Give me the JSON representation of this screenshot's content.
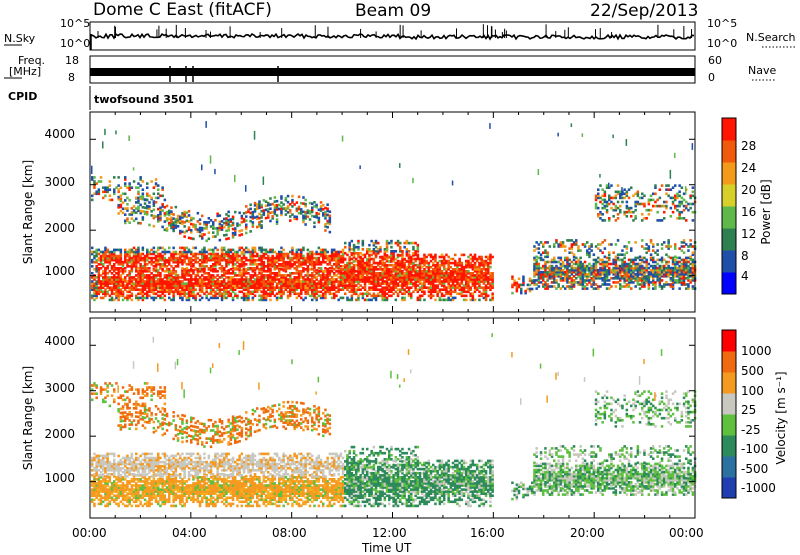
{
  "header": {
    "station": "Dome C East (fitACF)",
    "beam": "Beam 09",
    "date": "22/Sep/2013"
  },
  "panels": {
    "nsky": {
      "label": "N.Sky",
      "ticks": [
        "10^5",
        "10^0"
      ]
    },
    "nsearch": {
      "label": "N.Search",
      "ticks": [
        "10^5",
        "10^0"
      ]
    },
    "freq": {
      "label_line1": "Freq.",
      "label_line2": "[MHz]",
      "ticks": [
        "18",
        "8"
      ]
    },
    "nave": {
      "label": "Nave",
      "ticks": [
        "60",
        "0"
      ]
    },
    "cpid": {
      "label": "CPID",
      "value": "twofsound 3501"
    }
  },
  "chart_data": [
    {
      "type": "heatmap",
      "name": "power",
      "ylabel": "Slant Range [km]",
      "y_ticks": [
        "4000",
        "3000",
        "2000",
        "1000"
      ],
      "y_tick_values": [
        4000,
        3000,
        2000,
        1000
      ],
      "ylim": [
        200,
        4600
      ],
      "colorbar_label": "Power [dB]",
      "colorbar_ticks": [
        "28",
        "24",
        "20",
        "16",
        "12",
        "8",
        "4"
      ],
      "colorbar_colors": [
        "#0000ff",
        "#1f4fa8",
        "#2f8050",
        "#5fb84a",
        "#d8d02a",
        "#f39a1a",
        "#f05a0a",
        "#ff1500"
      ]
    },
    {
      "type": "heatmap",
      "name": "velocity",
      "ylabel": "Slant Range [km]",
      "y_ticks": [
        "4000",
        "3000",
        "2000",
        "1000"
      ],
      "y_tick_values": [
        4000,
        3000,
        2000,
        1000
      ],
      "ylim": [
        200,
        4600
      ],
      "colorbar_label": "Velocity [m s⁻¹]",
      "colorbar_ticks": [
        "1000",
        "500",
        "100",
        "25",
        "-25",
        "-100",
        "-500",
        "-1000"
      ],
      "colorbar_colors": [
        "#1f3fb0",
        "#2a70a0",
        "#2d8a5a",
        "#5fc040",
        "#c8c8c0",
        "#f59a20",
        "#f06a10",
        "#ff0000"
      ]
    }
  ],
  "x_axis": {
    "label": "Time UT",
    "ticks": [
      "00:00",
      "04:00",
      "08:00",
      "12:00",
      "16:00",
      "20:00",
      "00:00"
    ]
  },
  "colors": {
    "background": "#ffffff",
    "axes": "#000000"
  }
}
